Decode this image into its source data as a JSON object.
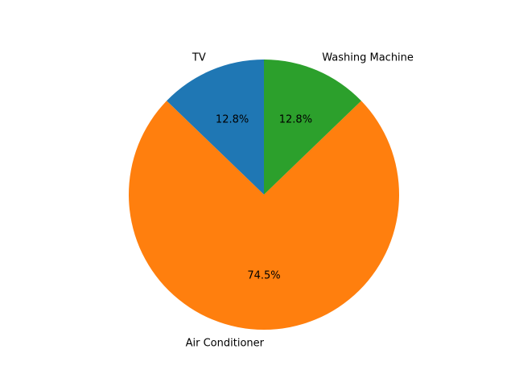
{
  "chart_data": {
    "type": "pie",
    "categories": [
      "TV",
      "Air Conditioner",
      "Washing Machine"
    ],
    "values": [
      12.8,
      74.5,
      12.8
    ],
    "percent_labels": [
      "12.8%",
      "74.5%",
      "12.8%"
    ],
    "colors": [
      "#1f77b4",
      "#ff7f0e",
      "#2ca02c"
    ],
    "start_angle_deg": 90,
    "direction": "counterclockwise",
    "legend": "none"
  }
}
